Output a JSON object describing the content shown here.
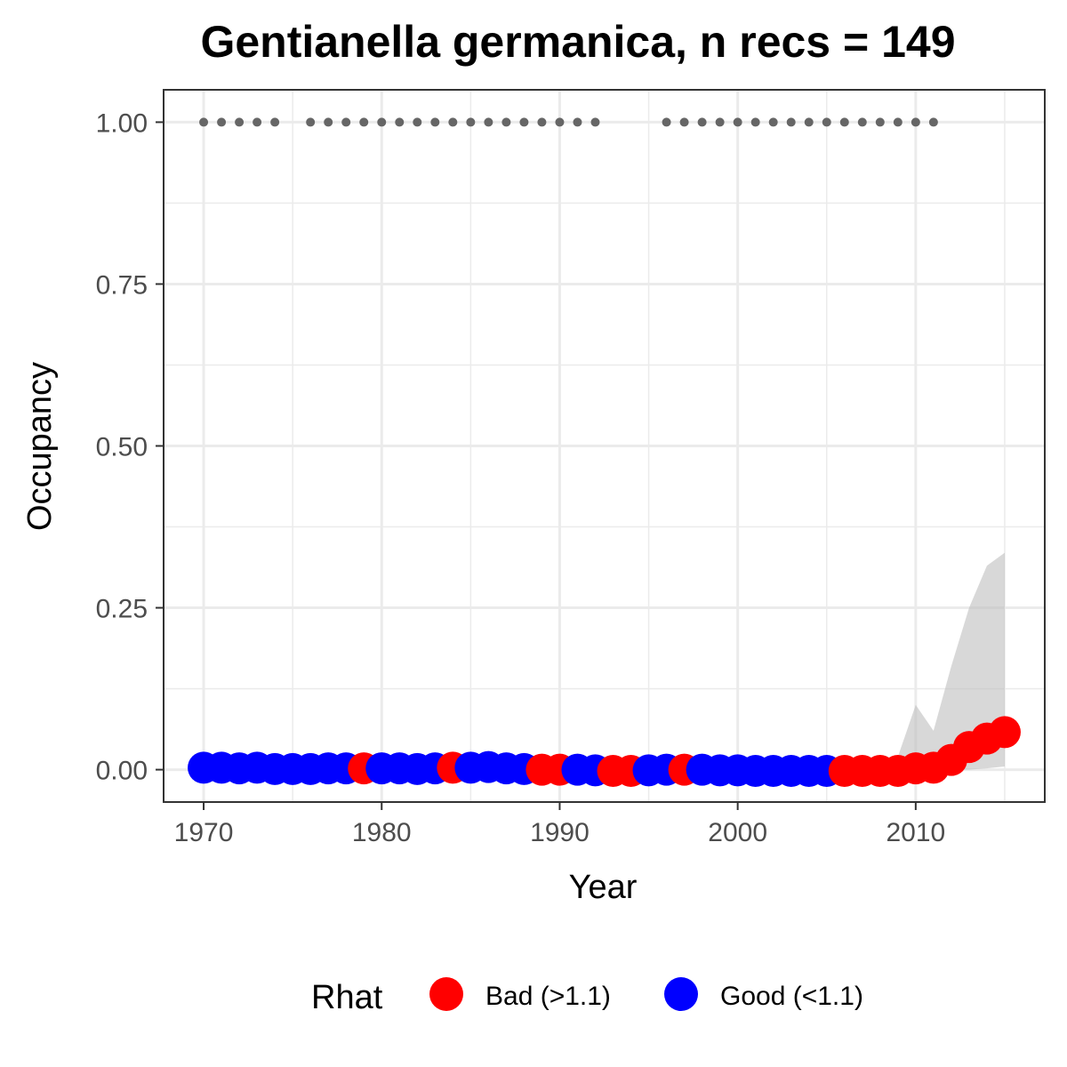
{
  "chart_data": {
    "type": "scatter",
    "title": "Gentianella germanica, n recs = 149",
    "xlabel": "Year",
    "ylabel": "Occupancy",
    "xlim": [
      1967.75,
      2017.25
    ],
    "ylim": [
      -0.05,
      1.05
    ],
    "x_ticks": [
      1970,
      1980,
      1990,
      2000,
      2010
    ],
    "x_tick_labels": [
      "1970",
      "1980",
      "1990",
      "2000",
      "2010"
    ],
    "y_ticks": [
      0.0,
      0.25,
      0.5,
      0.75,
      1.0
    ],
    "y_tick_labels": [
      "0.00",
      "0.25",
      "0.50",
      "0.75",
      "1.00"
    ],
    "grid": true,
    "legend": {
      "title": "Rhat",
      "position": "bottom",
      "entries": [
        {
          "label": "Bad (>1.1)",
          "color": "#ff0000"
        },
        {
          "label": "Good (<1.1)",
          "color": "#0000ff"
        }
      ]
    },
    "colors": {
      "bad": "#ff0000",
      "good": "#0000ff",
      "record_years": "#666666",
      "ribbon": "#bebebe"
    },
    "record_years": [
      1970,
      1971,
      1972,
      1973,
      1974,
      1976,
      1977,
      1978,
      1979,
      1980,
      1981,
      1982,
      1983,
      1984,
      1985,
      1986,
      1987,
      1988,
      1989,
      1990,
      1991,
      1992,
      1996,
      1997,
      1998,
      1999,
      2000,
      2001,
      2002,
      2003,
      2004,
      2005,
      2006,
      2007,
      2008,
      2009,
      2010,
      2011
    ],
    "record_y": 1.0,
    "series": [
      {
        "x": [
          1970,
          1971,
          1972,
          1973,
          1974,
          1975,
          1976,
          1977,
          1978,
          1979,
          1980,
          1981,
          1982,
          1983,
          1984,
          1985,
          1986,
          1987,
          1988,
          1989,
          1990,
          1991,
          1992,
          1993,
          1994,
          1995,
          1996,
          1997,
          1998,
          1999,
          2000,
          2001,
          2002,
          2003,
          2004,
          2005,
          2006,
          2007,
          2008,
          2009,
          2010,
          2011,
          2012,
          2013,
          2014,
          2015
        ],
        "y": [
          0.003,
          0.003,
          0.002,
          0.003,
          0.001,
          0.001,
          0.001,
          0.002,
          0.002,
          0.002,
          0.002,
          0.002,
          0.001,
          0.002,
          0.003,
          0.003,
          0.004,
          0.002,
          0.001,
          0.0,
          0.0,
          0.0,
          -0.001,
          -0.002,
          -0.002,
          -0.001,
          0.0,
          0.0,
          0.0,
          -0.001,
          -0.001,
          -0.002,
          -0.002,
          -0.002,
          -0.002,
          -0.002,
          -0.002,
          -0.002,
          -0.002,
          -0.002,
          0.002,
          0.003,
          0.015,
          0.035,
          0.048,
          0.058
        ],
        "rhat": [
          "good",
          "good",
          "good",
          "good",
          "good",
          "good",
          "good",
          "good",
          "good",
          "bad",
          "good",
          "good",
          "good",
          "good",
          "bad",
          "good",
          "good",
          "good",
          "good",
          "bad",
          "bad",
          "good",
          "good",
          "bad",
          "bad",
          "good",
          "good",
          "bad",
          "good",
          "good",
          "good",
          "good",
          "good",
          "good",
          "good",
          "good",
          "bad",
          "bad",
          "bad",
          "bad",
          "bad",
          "bad",
          "bad",
          "bad",
          "bad",
          "bad"
        ],
        "ribbon_x": [
          2009,
          2010,
          2011,
          2012,
          2013,
          2014,
          2015
        ],
        "ribbon_upper": [
          0.02,
          0.1,
          0.06,
          0.16,
          0.25,
          0.315,
          0.335
        ],
        "ribbon_lower": [
          0.0,
          0.0,
          0.0,
          0.0,
          0.0,
          0.002,
          0.005
        ]
      }
    ]
  }
}
